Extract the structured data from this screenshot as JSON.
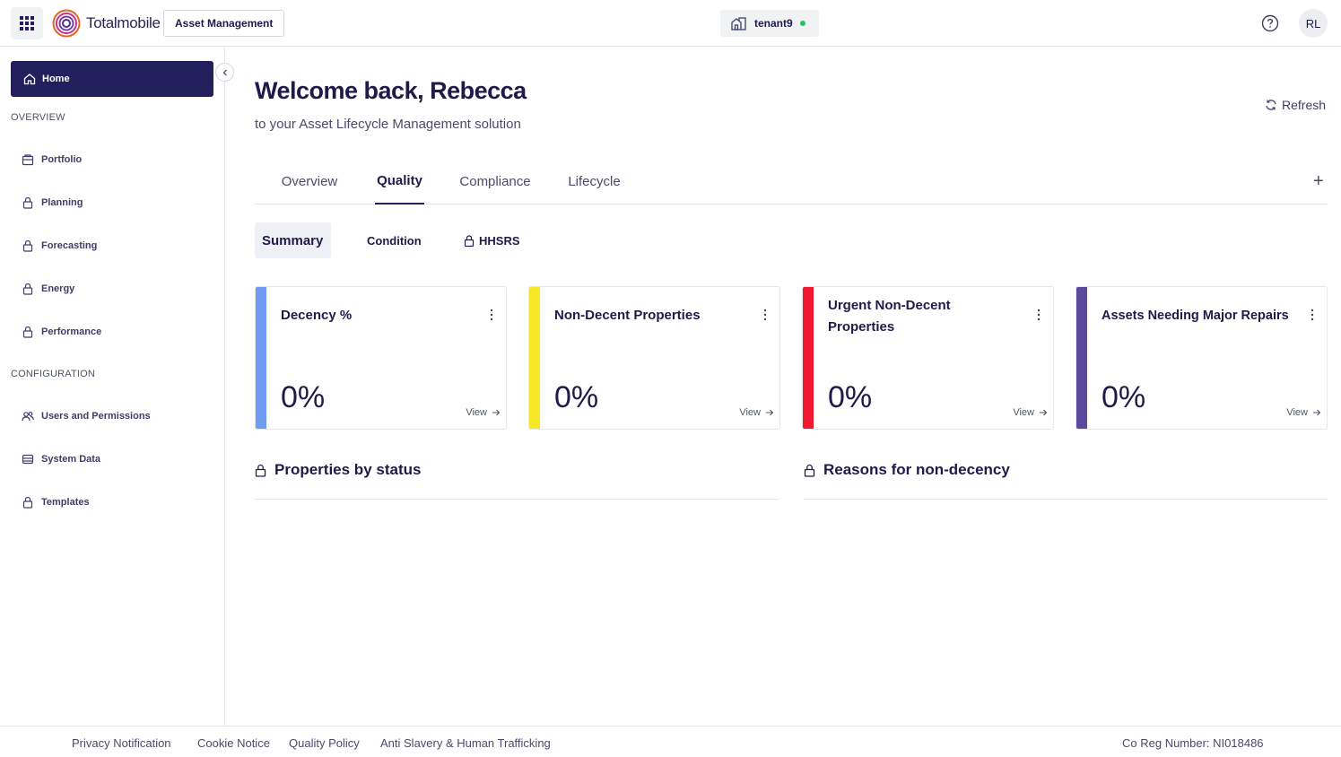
{
  "header": {
    "logo_text": "Totalmobile",
    "product": "Asset Management",
    "tenant": "tenant9",
    "tenant_status_color": "#22c55e",
    "avatar_initials": "RL"
  },
  "sidebar": {
    "home": "Home",
    "overview_label": "OVERVIEW",
    "overview_items": [
      "Portfolio",
      "Planning",
      "Forecasting",
      "Energy",
      "Performance"
    ],
    "configuration_label": "CONFIGURATION",
    "configuration_items": [
      "Users and Permissions",
      "System Data",
      "Templates"
    ]
  },
  "main": {
    "title": "Welcome back, Rebecca",
    "subtitle": "to your Asset Lifecycle Management solution",
    "refresh": "Refresh",
    "tabs": [
      "Overview",
      "Quality",
      "Compliance",
      "Lifecycle"
    ],
    "active_tab": "Quality",
    "subtabs": [
      "Summary",
      "Condition",
      "HHSRS"
    ],
    "active_subtab": "Summary",
    "cards": [
      {
        "title": "Decency %",
        "value": "0%",
        "link": "View",
        "accent": "#6f9cf0"
      },
      {
        "title": "Non-Decent Properties",
        "value": "0%",
        "link": "View",
        "accent": "#f5e626"
      },
      {
        "title": "Urgent Non-Decent Properties",
        "value": "0%",
        "link": "View",
        "accent": "#f0192f"
      },
      {
        "title": "Assets Needing Major Repairs",
        "value": "0%",
        "link": "View",
        "accent": "#5b4a9b"
      }
    ],
    "panels": [
      "Properties by status",
      "Reasons for non-decency"
    ]
  },
  "footer": {
    "links": [
      "Privacy Notification",
      "Cookie Notice",
      "Quality Policy",
      "Anti Slavery & Human Trafficking"
    ],
    "company_reg": "Co Reg Number: NI018486"
  }
}
